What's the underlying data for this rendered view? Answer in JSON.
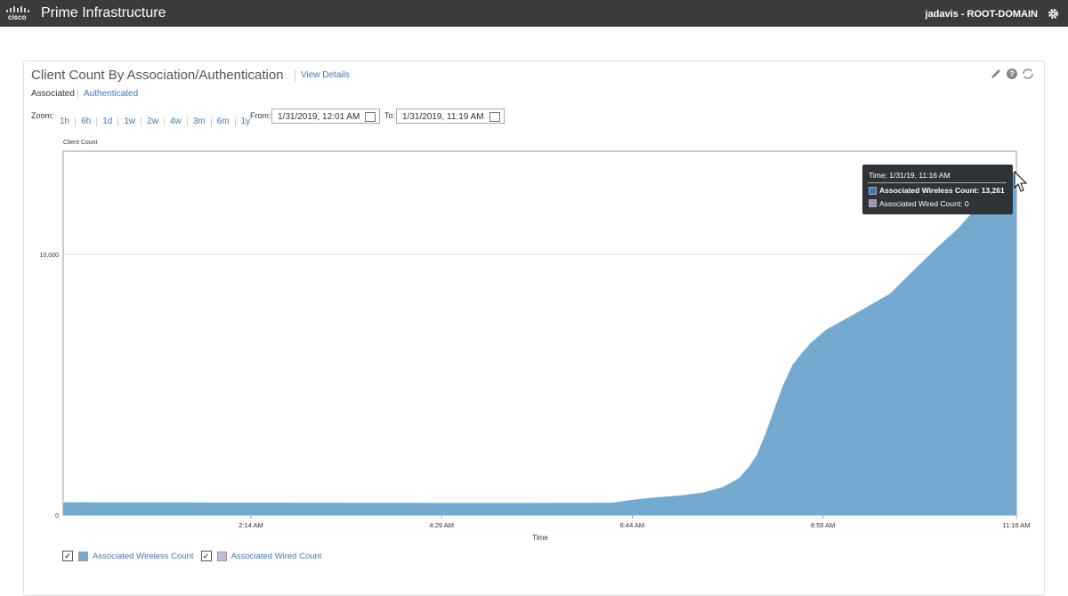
{
  "header": {
    "logo": "cisco",
    "product": "Prime Infrastructure",
    "user": "jadavis - ROOT-DOMAIN"
  },
  "panel": {
    "title": "Client Count By Association/Authentication",
    "link": "View Details",
    "tabs": [
      "Associated",
      "Authenticated"
    ],
    "zoom_label": "Zoom:",
    "zoom_options": [
      "1h",
      "6h",
      "1d",
      "1w",
      "2w",
      "4w",
      "3m",
      "6m",
      "1y"
    ],
    "from_label": "From:",
    "from": "1/31/2019, 12:01 AM",
    "to_label": "To:",
    "to": "1/31/2019, 11:19 AM"
  },
  "tooltip": {
    "time": "Time: 1/31/19, 11:16 AM",
    "lines": [
      "Associated Wireless Count: 13,261",
      "Associated Wired Count: 0"
    ]
  },
  "chart_data": {
    "type": "area",
    "y_label": "Client Count",
    "x_label": "Time",
    "x": [
      1,
      30,
      60,
      90,
      120,
      150,
      180,
      210,
      240,
      270,
      300,
      330,
      360,
      390,
      404,
      420,
      440,
      454,
      468,
      479,
      486,
      492,
      498,
      504,
      510,
      517,
      524,
      530,
      536,
      541,
      560,
      586,
      600,
      618,
      635,
      649,
      662,
      676
    ],
    "series": [
      {
        "name": "Associated Wireless Count",
        "color": "#75aad0",
        "values": [
          520,
          515,
          510,
          508,
          505,
          503,
          500,
          498,
          495,
          493,
          490,
          492,
          495,
          500,
          614,
          700,
          790,
          890,
          1100,
          1430,
          1850,
          2350,
          3150,
          4060,
          4950,
          5770,
          6250,
          6620,
          6900,
          7130,
          7700,
          8500,
          9250,
          10200,
          11050,
          11900,
          12600,
          13261
        ]
      },
      {
        "name": "Associated Wired Count",
        "color": "#c9b6dc",
        "values": [
          0,
          0,
          0,
          0,
          0,
          0,
          0,
          0,
          0,
          0,
          0,
          0,
          0,
          0,
          0,
          0,
          0,
          0,
          0,
          0,
          0,
          0,
          0,
          0,
          0,
          0,
          0,
          0,
          0,
          0,
          0,
          0,
          0,
          0,
          0,
          0,
          0,
          0
        ]
      }
    ],
    "xlim": [
      1,
      676
    ],
    "xticks": [
      {
        "value": 134,
        "label": "2:14 AM"
      },
      {
        "value": 269,
        "label": "4:29 AM"
      },
      {
        "value": 404,
        "label": "6:44 AM"
      },
      {
        "value": 539,
        "label": "8:59 AM"
      },
      {
        "value": 676,
        "label": "11:16 AM"
      }
    ],
    "ylim": [
      0,
      13950
    ],
    "yticks": [
      0,
      {
        "value": 10000,
        "label": "10,000"
      }
    ],
    "grid": true
  }
}
